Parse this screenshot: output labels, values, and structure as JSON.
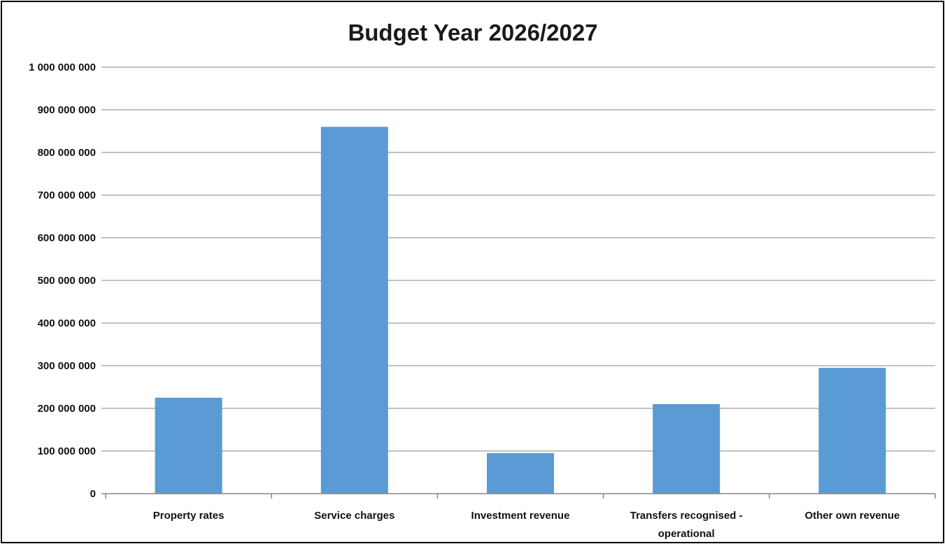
{
  "chart_data": {
    "type": "bar",
    "title": "Budget Year 2026/2027",
    "xlabel": "",
    "ylabel": "",
    "categories": [
      "Property rates",
      "Service charges",
      "Investment revenue",
      "Transfers recognised - operational",
      "Other own revenue"
    ],
    "category_label_lines": [
      [
        "Property rates"
      ],
      [
        "Service charges"
      ],
      [
        "Investment revenue"
      ],
      [
        "Transfers recognised -",
        "operational"
      ],
      [
        "Other own revenue"
      ]
    ],
    "values": [
      225000000,
      860000000,
      95000000,
      210000000,
      295000000
    ],
    "ylim": [
      0,
      1000000000
    ],
    "yticks": [
      0,
      100000000,
      200000000,
      300000000,
      400000000,
      500000000,
      600000000,
      700000000,
      800000000,
      900000000,
      1000000000
    ],
    "ytick_labels": [
      "0",
      "100 000 000",
      "200 000 000",
      "300 000 000",
      "400 000 000",
      "500 000 000",
      "600 000 000",
      "700 000 000",
      "800 000 000",
      "900 000 000",
      "1 000 000 000"
    ],
    "grid": true,
    "legend": "none",
    "colors": {
      "bar": "#5b9bd5",
      "grid": "#868686",
      "axis": "#868686",
      "text": "#111111"
    }
  }
}
